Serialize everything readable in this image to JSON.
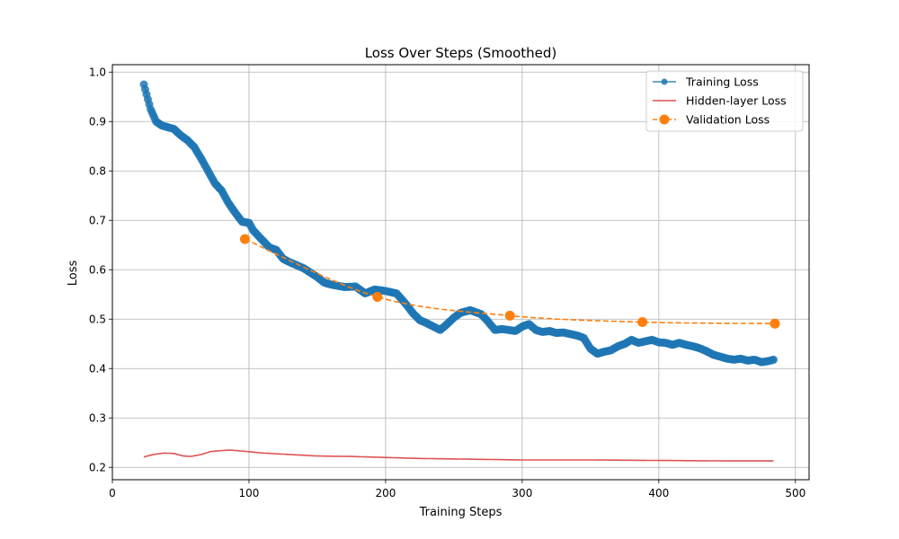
{
  "chart_data": {
    "type": "line",
    "title": "Loss Over Steps (Smoothed)",
    "xlabel": "Training Steps",
    "ylabel": "Loss",
    "xlim": [
      0,
      510
    ],
    "ylim": [
      0.175,
      1.015
    ],
    "xticks": [
      0,
      100,
      200,
      300,
      400,
      500
    ],
    "yticks": [
      0.2,
      0.3,
      0.4,
      0.5,
      0.6,
      0.7,
      0.8,
      0.9,
      1.0
    ],
    "grid": true,
    "legend_position": "top-right",
    "series": [
      {
        "name": "Training Loss",
        "color": "#1f77b4",
        "style": "line-marker",
        "knots": [
          [
            23,
            0.975
          ],
          [
            25,
            0.955
          ],
          [
            28,
            0.925
          ],
          [
            32,
            0.9
          ],
          [
            36,
            0.892
          ],
          [
            45,
            0.885
          ],
          [
            50,
            0.872
          ],
          [
            55,
            0.862
          ],
          [
            60,
            0.848
          ],
          [
            65,
            0.825
          ],
          [
            70,
            0.8
          ],
          [
            75,
            0.775
          ],
          [
            80,
            0.76
          ],
          [
            85,
            0.735
          ],
          [
            90,
            0.715
          ],
          [
            95,
            0.697
          ],
          [
            100,
            0.695
          ],
          [
            103,
            0.68
          ],
          [
            108,
            0.665
          ],
          [
            115,
            0.645
          ],
          [
            120,
            0.64
          ],
          [
            125,
            0.622
          ],
          [
            130,
            0.615
          ],
          [
            140,
            0.603
          ],
          [
            145,
            0.594
          ],
          [
            150,
            0.585
          ],
          [
            155,
            0.574
          ],
          [
            160,
            0.57
          ],
          [
            170,
            0.565
          ],
          [
            178,
            0.566
          ],
          [
            185,
            0.552
          ],
          [
            192,
            0.56
          ],
          [
            200,
            0.557
          ],
          [
            208,
            0.552
          ],
          [
            215,
            0.53
          ],
          [
            220,
            0.512
          ],
          [
            225,
            0.498
          ],
          [
            230,
            0.492
          ],
          [
            235,
            0.485
          ],
          [
            240,
            0.478
          ],
          [
            245,
            0.49
          ],
          [
            250,
            0.503
          ],
          [
            255,
            0.513
          ],
          [
            262,
            0.518
          ],
          [
            270,
            0.51
          ],
          [
            275,
            0.495
          ],
          [
            280,
            0.478
          ],
          [
            285,
            0.48
          ],
          [
            290,
            0.478
          ],
          [
            295,
            0.476
          ],
          [
            300,
            0.485
          ],
          [
            305,
            0.49
          ],
          [
            310,
            0.478
          ],
          [
            315,
            0.474
          ],
          [
            320,
            0.476
          ],
          [
            325,
            0.472
          ],
          [
            330,
            0.473
          ],
          [
            335,
            0.47
          ],
          [
            340,
            0.467
          ],
          [
            345,
            0.462
          ],
          [
            350,
            0.44
          ],
          [
            355,
            0.43
          ],
          [
            360,
            0.434
          ],
          [
            365,
            0.437
          ],
          [
            370,
            0.445
          ],
          [
            375,
            0.45
          ],
          [
            380,
            0.458
          ],
          [
            385,
            0.452
          ],
          [
            390,
            0.455
          ],
          [
            395,
            0.458
          ],
          [
            400,
            0.453
          ],
          [
            405,
            0.452
          ],
          [
            410,
            0.448
          ],
          [
            415,
            0.452
          ],
          [
            420,
            0.448
          ],
          [
            425,
            0.445
          ],
          [
            430,
            0.441
          ],
          [
            435,
            0.435
          ],
          [
            440,
            0.428
          ],
          [
            445,
            0.424
          ],
          [
            450,
            0.42
          ],
          [
            455,
            0.418
          ],
          [
            460,
            0.42
          ],
          [
            465,
            0.416
          ],
          [
            470,
            0.418
          ],
          [
            475,
            0.413
          ],
          [
            480,
            0.415
          ],
          [
            484,
            0.418
          ]
        ]
      },
      {
        "name": "Hidden-layer Loss",
        "color": "#d62728",
        "style": "line",
        "knots": [
          [
            23,
            0.221
          ],
          [
            30,
            0.226
          ],
          [
            38,
            0.229
          ],
          [
            45,
            0.228
          ],
          [
            52,
            0.223
          ],
          [
            57,
            0.222
          ],
          [
            65,
            0.226
          ],
          [
            72,
            0.232
          ],
          [
            80,
            0.234
          ],
          [
            86,
            0.235
          ],
          [
            95,
            0.233
          ],
          [
            110,
            0.229
          ],
          [
            130,
            0.226
          ],
          [
            150,
            0.223
          ],
          [
            175,
            0.222
          ],
          [
            200,
            0.22
          ],
          [
            225,
            0.218
          ],
          [
            250,
            0.217
          ],
          [
            275,
            0.216
          ],
          [
            300,
            0.215
          ],
          [
            350,
            0.215
          ],
          [
            400,
            0.214
          ],
          [
            450,
            0.213
          ],
          [
            484,
            0.213
          ]
        ]
      },
      {
        "name": "Validation Loss",
        "color": "#ff7f0e",
        "style": "dashed-marker",
        "points": [
          [
            97,
            0.662
          ],
          [
            194,
            0.545
          ],
          [
            291,
            0.507
          ],
          [
            388,
            0.494
          ],
          [
            485,
            0.491
          ]
        ]
      }
    ]
  }
}
